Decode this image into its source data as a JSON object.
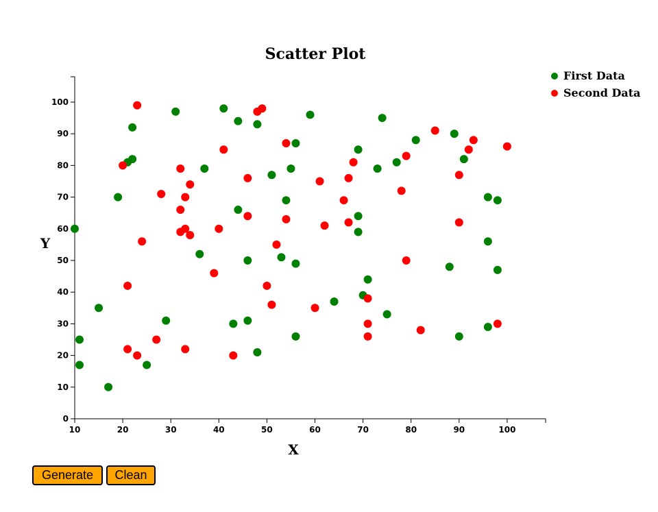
{
  "chart_data": {
    "type": "scatter",
    "title": "Scatter Plot",
    "xlabel": "X",
    "ylabel": "Y",
    "xlim": [
      10,
      108
    ],
    "ylim": [
      0,
      108
    ],
    "xticks": [
      10,
      20,
      30,
      40,
      50,
      60,
      70,
      80,
      90,
      100
    ],
    "yticks": [
      0,
      10,
      20,
      30,
      40,
      50,
      60,
      70,
      80,
      90,
      100
    ],
    "legend_position": "top-right",
    "series": [
      {
        "name": "First Data",
        "color": "#008000",
        "points": [
          [
            10,
            60
          ],
          [
            11,
            25
          ],
          [
            11,
            17
          ],
          [
            15,
            35
          ],
          [
            17,
            10
          ],
          [
            19,
            70
          ],
          [
            21,
            81
          ],
          [
            22,
            82
          ],
          [
            22,
            92
          ],
          [
            25,
            17
          ],
          [
            29,
            31
          ],
          [
            31,
            97
          ],
          [
            36,
            52
          ],
          [
            37,
            79
          ],
          [
            41,
            98
          ],
          [
            43,
            30
          ],
          [
            44,
            94
          ],
          [
            44,
            66
          ],
          [
            46,
            50
          ],
          [
            46,
            31
          ],
          [
            48,
            93
          ],
          [
            48,
            21
          ],
          [
            51,
            77
          ],
          [
            53,
            51
          ],
          [
            54,
            69
          ],
          [
            55,
            79
          ],
          [
            56,
            87
          ],
          [
            56,
            49
          ],
          [
            56,
            26
          ],
          [
            59,
            96
          ],
          [
            64,
            37
          ],
          [
            69,
            85
          ],
          [
            69,
            64
          ],
          [
            69,
            59
          ],
          [
            70,
            39
          ],
          [
            71,
            44
          ],
          [
            73,
            79
          ],
          [
            74,
            95
          ],
          [
            75,
            33
          ],
          [
            77,
            81
          ],
          [
            81,
            88
          ],
          [
            88,
            48
          ],
          [
            89,
            90
          ],
          [
            90,
            26
          ],
          [
            91,
            82
          ],
          [
            96,
            70
          ],
          [
            96,
            56
          ],
          [
            96,
            29
          ],
          [
            98,
            69
          ],
          [
            98,
            47
          ]
        ]
      },
      {
        "name": "Second Data",
        "color": "#ff0000",
        "points": [
          [
            20,
            80
          ],
          [
            21,
            42
          ],
          [
            21,
            22
          ],
          [
            23,
            99
          ],
          [
            23,
            20
          ],
          [
            24,
            56
          ],
          [
            27,
            25
          ],
          [
            28,
            71
          ],
          [
            32,
            79
          ],
          [
            32,
            66
          ],
          [
            32,
            59
          ],
          [
            33,
            70
          ],
          [
            33,
            60
          ],
          [
            33,
            22
          ],
          [
            34,
            74
          ],
          [
            34,
            58
          ],
          [
            39,
            46
          ],
          [
            40,
            60
          ],
          [
            41,
            85
          ],
          [
            43,
            20
          ],
          [
            46,
            76
          ],
          [
            46,
            64
          ],
          [
            48,
            97
          ],
          [
            49,
            98
          ],
          [
            50,
            42
          ],
          [
            51,
            36
          ],
          [
            52,
            55
          ],
          [
            54,
            87
          ],
          [
            54,
            63
          ],
          [
            60,
            35
          ],
          [
            61,
            75
          ],
          [
            62,
            61
          ],
          [
            66,
            69
          ],
          [
            67,
            76
          ],
          [
            67,
            62
          ],
          [
            68,
            81
          ],
          [
            71,
            38
          ],
          [
            71,
            30
          ],
          [
            71,
            26
          ],
          [
            78,
            72
          ],
          [
            79,
            83
          ],
          [
            79,
            50
          ],
          [
            82,
            28
          ],
          [
            85,
            91
          ],
          [
            90,
            77
          ],
          [
            90,
            62
          ],
          [
            92,
            85
          ],
          [
            93,
            88
          ],
          [
            98,
            30
          ],
          [
            100,
            86
          ]
        ]
      }
    ]
  },
  "controls": {
    "generate_label": "Generate",
    "clean_label": "Clean"
  }
}
